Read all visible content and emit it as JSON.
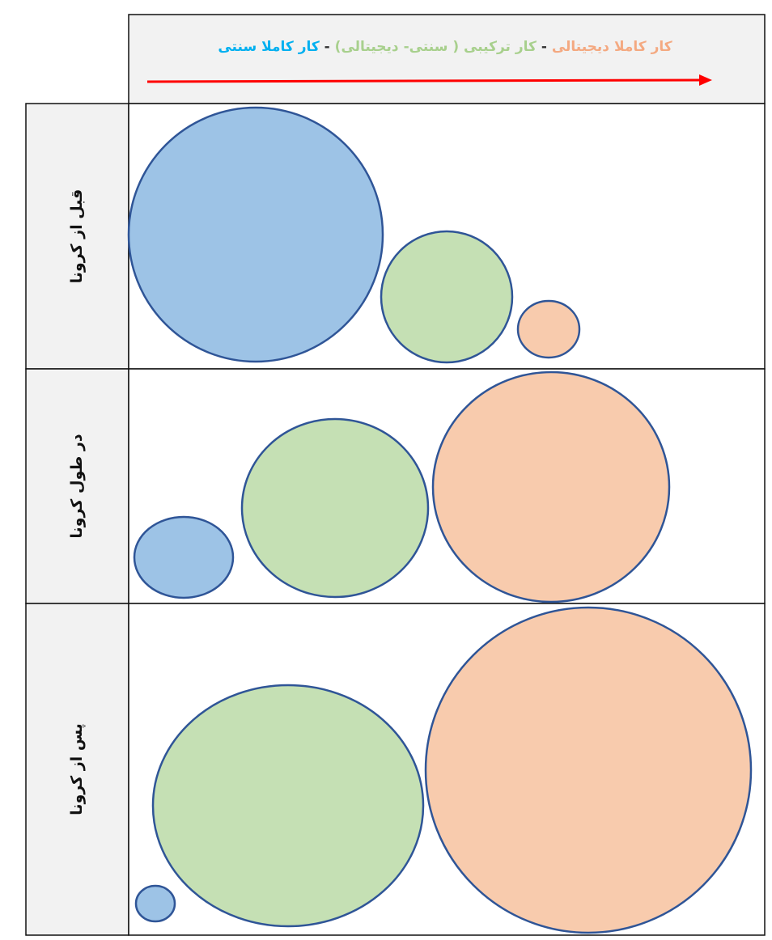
{
  "header": {
    "segments": [
      {
        "text": "کار کاملا دیجیتالی",
        "color": "#f4a981"
      },
      {
        "text": " - ",
        "color": "#333333"
      },
      {
        "text": "کار ترکیبی ( سنتی- دیجیتالی)",
        "color": "#a8d08d"
      },
      {
        "text": " - ",
        "color": "#333333"
      },
      {
        "text": "کار کاملا سنتی",
        "color": "#00b0f0"
      }
    ],
    "arrow_color": "#ff0000"
  },
  "rows": [
    {
      "label": "قبل از کرونا"
    },
    {
      "label": "در طول کرونا"
    },
    {
      "label": "پس از کرونا"
    }
  ],
  "colors": {
    "traditional": "#9dc3e6",
    "hybrid": "#c5e0b4",
    "digital": "#f8cbad",
    "circle_stroke": "#2f5597",
    "header_bg": "#f2f2f2",
    "label_bg": "#f2f2f2"
  }
}
